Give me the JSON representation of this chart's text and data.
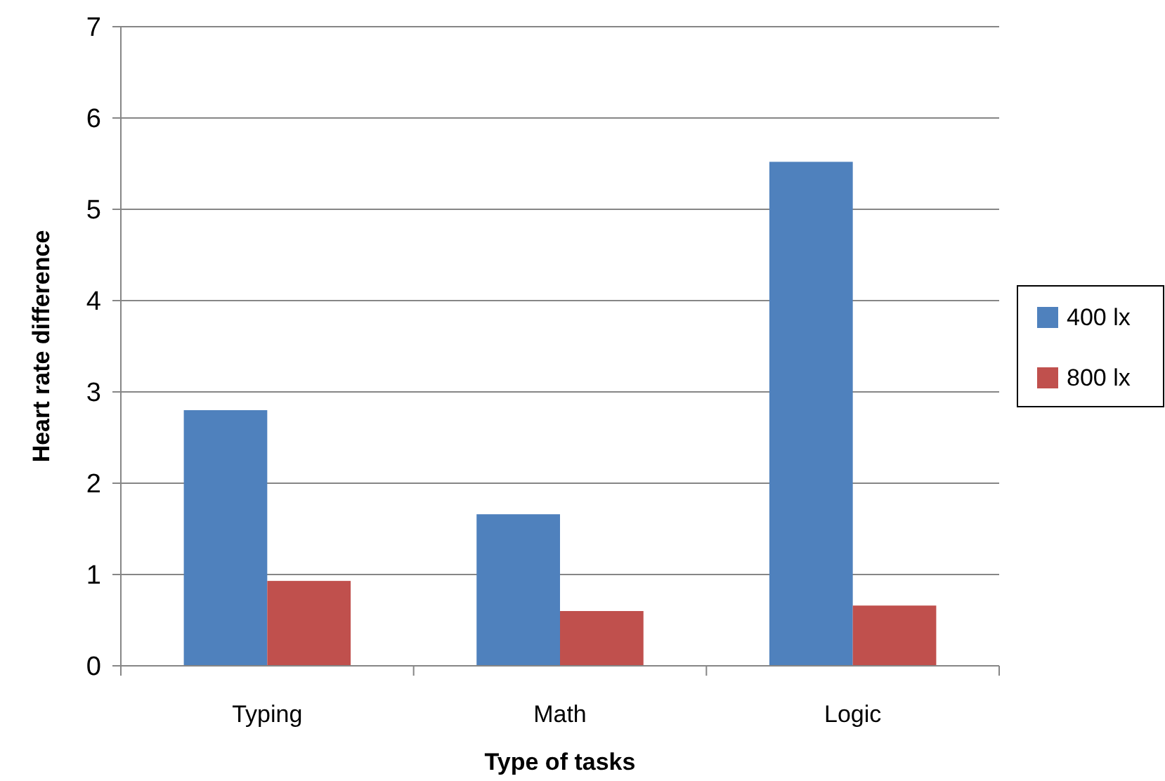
{
  "chart_data": {
    "type": "bar",
    "xlabel": "Type of tasks",
    "ylabel": "Heart rate difference",
    "categories": [
      "Typing",
      "Math",
      "Logic"
    ],
    "series": [
      {
        "name": "400 lx",
        "color": "#4f81bd",
        "values": [
          2.8,
          1.66,
          5.52
        ]
      },
      {
        "name": "800 lx",
        "color": "#c0504d",
        "values": [
          0.93,
          0.6,
          0.66
        ]
      }
    ],
    "ylim": [
      0,
      7
    ],
    "yticks": [
      0,
      1,
      2,
      3,
      4,
      5,
      6,
      7
    ],
    "grid": "y",
    "legend": "right"
  }
}
